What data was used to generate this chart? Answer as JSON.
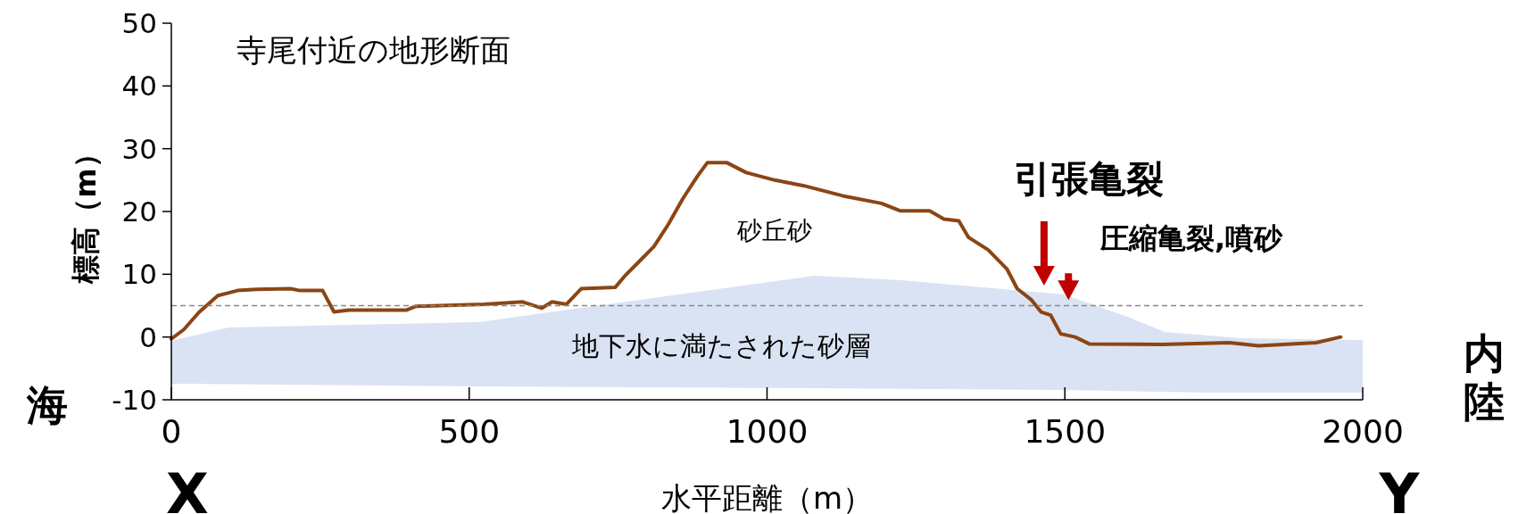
{
  "chart_data": {
    "type": "line",
    "title": "寺尾付近の地形断面",
    "xlabel": "水平距離（m）",
    "ylabel": "標高（m）",
    "xlim": [
      0,
      2000
    ],
    "xticks": [
      0,
      500,
      1000,
      1500,
      2000
    ],
    "ylim": [
      -10,
      50
    ],
    "yticks": [
      -10,
      0,
      10,
      20,
      30,
      40,
      50
    ],
    "grid": false,
    "marker": "none",
    "series": [
      {
        "color": "#8b4513",
        "line_style": "solid",
        "x": [
          0,
          21,
          46,
          78,
          111,
          143,
          200,
          216,
          254,
          273,
          298,
          395,
          411,
          525,
          590,
          622,
          639,
          663,
          688,
          745,
          761,
          785,
          810,
          834,
          859,
          883,
          900,
          932,
          965,
          1013,
          1062,
          1127,
          1192,
          1224,
          1273,
          1297,
          1322,
          1338,
          1371,
          1403,
          1420,
          1444,
          1460,
          1476,
          1493,
          1517,
          1541,
          1663,
          1776,
          1825,
          1922,
          1963
        ],
        "values": [
          -0.3,
          1.2,
          3.9,
          6.6,
          7.4,
          7.6,
          7.7,
          7.4,
          7.4,
          4.0,
          4.3,
          4.3,
          4.9,
          5.2,
          5.6,
          4.6,
          5.6,
          5.2,
          7.7,
          7.9,
          9.7,
          12.0,
          14.4,
          17.9,
          22.1,
          25.6,
          27.8,
          27.8,
          26.2,
          25.0,
          24.1,
          22.5,
          21.3,
          20.1,
          20.1,
          18.8,
          18.5,
          15.9,
          13.9,
          10.8,
          7.7,
          5.9,
          4.0,
          3.5,
          0.5,
          0,
          -1.1,
          -1.2,
          -0.9,
          -1.4,
          -0.9,
          0
        ]
      }
    ],
    "ref_lines": [
      {
        "axis": "y",
        "value": 5,
        "color": "#888888",
        "line_style": "dashed"
      }
    ],
    "annotations": [
      "砂丘砂",
      "地下水に満たされた砂層",
      "引張亀裂",
      "圧縮亀裂,噴砂",
      "海",
      "内陸",
      "X",
      "Y"
    ]
  }
}
